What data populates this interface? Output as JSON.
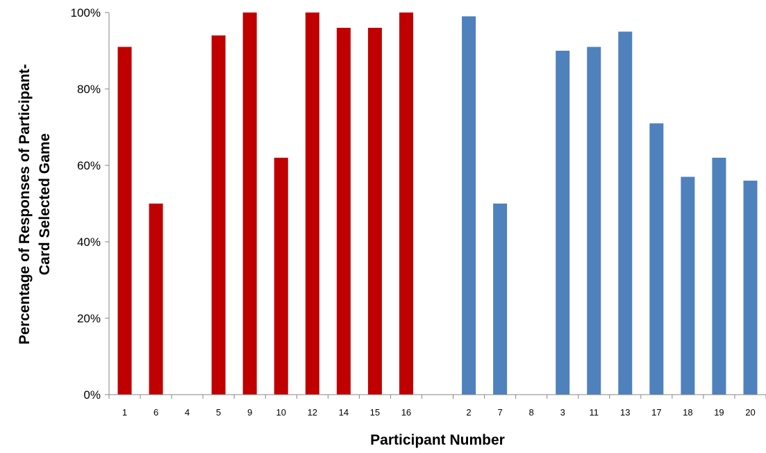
{
  "chart_data": {
    "type": "bar",
    "title": "",
    "xlabel": "Participant Number",
    "ylabel_lines": [
      "Percentage of Responses of Participant-",
      "Card Selected Game"
    ],
    "ylim": [
      0,
      100
    ],
    "yticks": [
      "0%",
      "20%",
      "40%",
      "60%",
      "80%",
      "100%"
    ],
    "ytick_values": [
      0,
      20,
      40,
      60,
      80,
      100
    ],
    "grid": false,
    "legend": "none",
    "categories": [
      "1",
      "6",
      "4",
      "5",
      "9",
      "10",
      "12",
      "14",
      "15",
      "16",
      "",
      "2",
      "7",
      "8",
      "3",
      "11",
      "13",
      "17",
      "18",
      "19",
      "20"
    ],
    "groups": [
      {
        "color": "#C00000",
        "categories": [
          "1",
          "6",
          "4",
          "5",
          "9",
          "10",
          "12",
          "14",
          "15",
          "16"
        ],
        "values": [
          91,
          50,
          0,
          94,
          100,
          62,
          100,
          96,
          96,
          100
        ]
      },
      {
        "color": "#4F81BD",
        "categories": [
          "2",
          "7",
          "8",
          "3",
          "11",
          "13",
          "17",
          "18",
          "19",
          "20"
        ],
        "values": [
          99,
          50,
          0,
          90,
          91,
          95,
          71,
          57,
          62,
          56
        ]
      }
    ]
  }
}
